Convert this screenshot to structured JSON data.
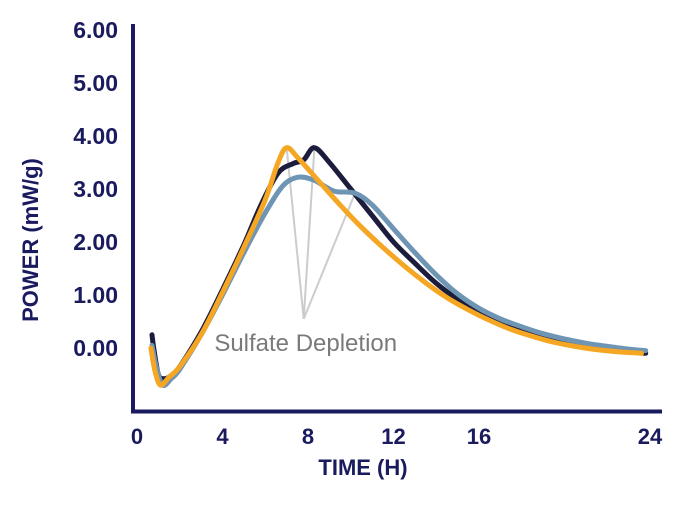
{
  "chart_data": {
    "type": "line",
    "title": "",
    "xlabel": "TIME (H)",
    "ylabel": "POWER (mW/g)",
    "xlim": [
      0,
      24
    ],
    "ylim": [
      -1.3,
      6.0
    ],
    "x_ticks": [
      0,
      4,
      8,
      12,
      16,
      24
    ],
    "x_tick_labels": [
      "0",
      "4",
      "8",
      "12",
      "16",
      "24"
    ],
    "y_ticks": [
      0,
      1,
      2,
      3,
      4,
      5,
      6
    ],
    "y_tick_labels": [
      "0.00",
      "1.00",
      "2.00",
      "3.00",
      "4.00",
      "5.00",
      "6.00"
    ],
    "grid": false,
    "legend": "none",
    "series": [
      {
        "name": "navy",
        "color": "#1c1c3c",
        "points": [
          [
            0.7,
            0.25
          ],
          [
            0.8,
            -0.05
          ],
          [
            1.0,
            -0.5
          ],
          [
            1.25,
            -0.58
          ],
          [
            1.6,
            -0.52
          ],
          [
            2.0,
            -0.35
          ],
          [
            3.0,
            0.3
          ],
          [
            4.0,
            1.1
          ],
          [
            5.0,
            1.95
          ],
          [
            5.8,
            2.7
          ],
          [
            6.6,
            3.3
          ],
          [
            7.3,
            3.48
          ],
          [
            7.8,
            3.55
          ],
          [
            8.3,
            3.78
          ],
          [
            9.0,
            3.5
          ],
          [
            10.0,
            3.0
          ],
          [
            11.0,
            2.5
          ],
          [
            12.0,
            2.0
          ],
          [
            13.0,
            1.6
          ],
          [
            14.0,
            1.22
          ],
          [
            15.0,
            0.92
          ],
          [
            16.0,
            0.68
          ],
          [
            17.0,
            0.48
          ],
          [
            18.0,
            0.34
          ],
          [
            19.0,
            0.22
          ],
          [
            20.0,
            0.12
          ],
          [
            21.0,
            0.05
          ],
          [
            22.0,
            -0.02
          ],
          [
            23.0,
            -0.07
          ],
          [
            23.8,
            -0.1
          ]
        ]
      },
      {
        "name": "steel-blue",
        "color": "#6f95b5",
        "points": [
          [
            0.7,
            0.05
          ],
          [
            0.9,
            -0.35
          ],
          [
            1.2,
            -0.7
          ],
          [
            1.6,
            -0.58
          ],
          [
            2.0,
            -0.4
          ],
          [
            3.0,
            0.25
          ],
          [
            4.0,
            1.0
          ],
          [
            5.0,
            1.8
          ],
          [
            6.0,
            2.55
          ],
          [
            6.8,
            3.05
          ],
          [
            7.5,
            3.22
          ],
          [
            8.2,
            3.18
          ],
          [
            8.8,
            3.05
          ],
          [
            9.3,
            2.95
          ],
          [
            10.2,
            2.92
          ],
          [
            11.0,
            2.7
          ],
          [
            12.0,
            2.25
          ],
          [
            13.0,
            1.8
          ],
          [
            14.0,
            1.38
          ],
          [
            15.0,
            1.02
          ],
          [
            16.0,
            0.75
          ],
          [
            17.0,
            0.55
          ],
          [
            18.0,
            0.4
          ],
          [
            19.0,
            0.27
          ],
          [
            20.0,
            0.17
          ],
          [
            21.0,
            0.09
          ],
          [
            22.0,
            0.03
          ],
          [
            23.0,
            -0.02
          ],
          [
            23.8,
            -0.05
          ]
        ]
      },
      {
        "name": "orange",
        "color": "#f5a623",
        "points": [
          [
            0.65,
            0.0
          ],
          [
            0.85,
            -0.45
          ],
          [
            1.1,
            -0.7
          ],
          [
            1.5,
            -0.55
          ],
          [
            2.0,
            -0.35
          ],
          [
            3.0,
            0.25
          ],
          [
            4.0,
            1.05
          ],
          [
            5.0,
            1.9
          ],
          [
            6.0,
            2.8
          ],
          [
            6.6,
            3.5
          ],
          [
            7.0,
            3.78
          ],
          [
            7.5,
            3.6
          ],
          [
            8.5,
            3.15
          ],
          [
            9.5,
            2.7
          ],
          [
            10.5,
            2.28
          ],
          [
            11.5,
            1.9
          ],
          [
            12.5,
            1.55
          ],
          [
            13.5,
            1.23
          ],
          [
            14.5,
            0.95
          ],
          [
            15.5,
            0.72
          ],
          [
            16.5,
            0.52
          ],
          [
            17.5,
            0.35
          ],
          [
            18.5,
            0.22
          ],
          [
            19.5,
            0.11
          ],
          [
            20.5,
            0.03
          ],
          [
            21.5,
            -0.03
          ],
          [
            22.5,
            -0.07
          ],
          [
            23.6,
            -0.1
          ]
        ]
      }
    ],
    "annotations": [
      {
        "text": "Sulfate Depletion",
        "anchor": [
          7.8,
          0.55
        ],
        "targets": [
          [
            7.0,
            3.78
          ],
          [
            8.3,
            3.78
          ],
          [
            10.2,
            2.92
          ]
        ],
        "color": "#cccccc",
        "text_color": "#7a7a7a"
      }
    ],
    "axis_color": "#1a1a5e"
  }
}
